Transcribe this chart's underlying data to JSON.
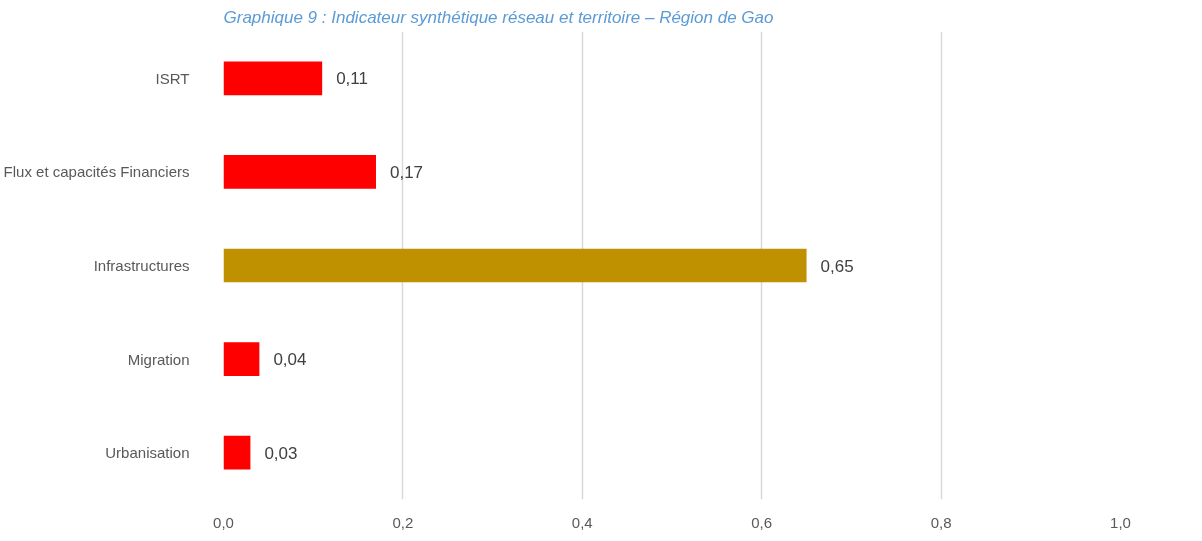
{
  "chart_data": {
    "type": "bar",
    "orientation": "horizontal",
    "title": "Graphique 9 : Indicateur synthétique réseau et territoire – Région de Gao",
    "categories": [
      "ISRT",
      "Flux et capacités Financiers",
      "Infrastructures",
      "Migration",
      "Urbanisation"
    ],
    "values": [
      0.11,
      0.17,
      0.65,
      0.04,
      0.03
    ],
    "value_labels": [
      "0,11",
      "0,17",
      "0,65",
      "0,04",
      "0,03"
    ],
    "colors": [
      "#ff0000",
      "#ff0000",
      "#bf9000",
      "#ff0000",
      "#ff0000"
    ],
    "xlim": [
      0,
      1.0
    ],
    "xticks": [
      {
        "value": 0,
        "label": "0,0"
      },
      {
        "value": 0.2,
        "label": "0,2"
      },
      {
        "value": 0.4,
        "label": "0,4"
      },
      {
        "value": 0.6,
        "label": "0,6"
      },
      {
        "value": 0.8,
        "label": "0,8"
      },
      {
        "value": 1.0,
        "label": "1,0"
      }
    ],
    "grid": "x"
  }
}
